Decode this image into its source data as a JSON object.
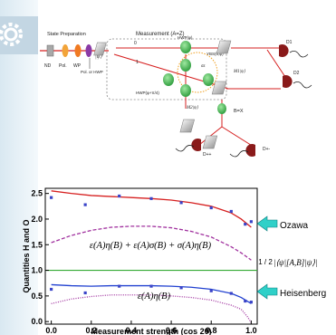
{
  "setup": {
    "section_labels": [
      "State Preparation",
      "Measurement (A=Z)"
    ],
    "components": [
      "ND",
      "Pol.",
      "WP",
      "Pol. or HWP",
      "HWP(φ)",
      "YBS(θ,φ)",
      "σz",
      "HWP(φ+π/4)",
      "M1|ψ⟩",
      "M2|ψ⟩",
      "B=X",
      "D1",
      "D2",
      "D++",
      "D+-"
    ],
    "state": "|ψ⟩",
    "ports": [
      "0",
      "1"
    ]
  },
  "chart_data": {
    "type": "scatter",
    "xlabel": "Measurement strength (cos 2θ)",
    "ylabel": "Quantities H and O",
    "xlim": [
      -0.03,
      1.03
    ],
    "ylim": [
      -0.05,
      2.6
    ],
    "x_ticks": [
      "0.0",
      "0.2",
      "0.4",
      "0.6",
      "0.8",
      "1.0"
    ],
    "x_tick_values": [
      0.0,
      0.2,
      0.4,
      0.6,
      0.8,
      1.0
    ],
    "y_ticks": [
      "0.0",
      "0.5",
      "1.0",
      "1.5",
      "2.0",
      "2.5"
    ],
    "y_tick_values": [
      0.0,
      0.5,
      1.0,
      1.5,
      2.0,
      2.5
    ],
    "series": [
      {
        "color": "#3a44c8",
        "x": [
          0.0,
          0.17,
          0.34,
          0.5,
          0.65,
          0.8,
          0.9,
          0.97,
          1.0
        ],
        "y": [
          2.42,
          2.28,
          2.45,
          2.4,
          2.32,
          2.22,
          2.15,
          1.9,
          1.95
        ]
      },
      {
        "color": "#3a44c8",
        "x": [
          0.0,
          0.17,
          0.34,
          0.5,
          0.65,
          0.8,
          0.9,
          0.97,
          1.0
        ],
        "y": [
          0.63,
          0.56,
          0.69,
          0.69,
          0.66,
          0.6,
          0.55,
          0.4,
          0.38
        ]
      }
    ],
    "curves": [
      {
        "color": "#d62020",
        "style": "solid",
        "x": [
          0.0,
          0.1,
          0.2,
          0.3,
          0.4,
          0.5,
          0.6,
          0.7,
          0.8,
          0.9,
          0.95,
          1.0
        ],
        "y": [
          2.55,
          2.5,
          2.46,
          2.44,
          2.42,
          2.4,
          2.37,
          2.32,
          2.25,
          2.12,
          2.0,
          1.84
        ]
      },
      {
        "color": "#a0309e",
        "style": "dashed",
        "x": [
          0.0,
          0.1,
          0.2,
          0.3,
          0.4,
          0.5,
          0.6,
          0.7,
          0.8,
          0.9,
          0.95,
          1.0
        ],
        "y": [
          1.54,
          1.68,
          1.78,
          1.84,
          1.86,
          1.86,
          1.83,
          1.76,
          1.65,
          1.46,
          1.34,
          1.2
        ]
      },
      {
        "color": "#2040d0",
        "style": "solid",
        "x": [
          0.0,
          0.1,
          0.2,
          0.3,
          0.4,
          0.5,
          0.6,
          0.7,
          0.8,
          0.9,
          0.95,
          1.0
        ],
        "y": [
          0.72,
          0.7,
          0.69,
          0.7,
          0.7,
          0.7,
          0.69,
          0.67,
          0.63,
          0.55,
          0.47,
          0.35
        ]
      },
      {
        "color": "#a0309e",
        "style": "dotted",
        "x": [
          0.0,
          0.1,
          0.2,
          0.3,
          0.4,
          0.5,
          0.6,
          0.7,
          0.8,
          0.9,
          0.95,
          0.98,
          1.0
        ],
        "y": [
          0.35,
          0.44,
          0.49,
          0.52,
          0.52,
          0.52,
          0.5,
          0.47,
          0.42,
          0.32,
          0.24,
          0.1,
          -0.02
        ]
      }
    ],
    "reference_line": {
      "y": 1.0,
      "color": "#33aa33"
    },
    "annotations": [
      "ε(A)η(B) + ε(A)σ(B) + σ(A)η(B)",
      "ε(A)η(B)"
    ],
    "side_labels": {
      "upper": "Ozawa",
      "middle_fraction": "1 / 2",
      "middle": "|⟨ψ|[A,B]|ψ⟩|",
      "lower": "Heisenberg"
    }
  }
}
